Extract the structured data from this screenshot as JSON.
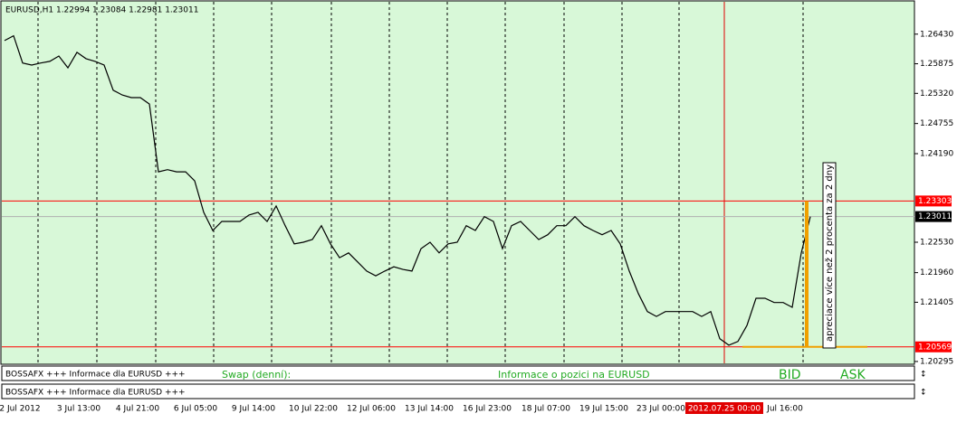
{
  "chart_data": {
    "type": "line",
    "title": "EURUSD,H1  1.22994 1.23084 1.22981 1.23011",
    "color": "#000000",
    "values": [
      1.2631,
      1.264,
      1.2589,
      1.2585,
      1.2589,
      1.2592,
      1.2602,
      1.258,
      1.2609,
      1.2597,
      1.2592,
      1.2585,
      1.2538,
      1.2529,
      1.2524,
      1.2524,
      1.2512,
      1.2385,
      1.2389,
      1.2385,
      1.2385,
      1.2368,
      1.2309,
      1.2275,
      1.2292,
      1.2292,
      1.2292,
      1.2304,
      1.2309,
      1.2292,
      1.2321,
      1.2284,
      1.225,
      1.2253,
      1.2258,
      1.2284,
      1.225,
      1.2224,
      1.2233,
      1.2216,
      1.2199,
      1.219,
      1.2199,
      1.2207,
      1.2202,
      1.2199,
      1.2241,
      1.2253,
      1.2233,
      1.225,
      1.2253,
      1.2284,
      1.2275,
      1.2301,
      1.2292,
      1.2241,
      1.2284,
      1.2292,
      1.2275,
      1.2258,
      1.2267,
      1.2284,
      1.2284,
      1.2301,
      1.2284,
      1.2275,
      1.2267,
      1.2275,
      1.225,
      1.2199,
      1.2157,
      1.2123,
      1.2114,
      1.2123,
      1.2123,
      1.2123,
      1.2123,
      1.2114,
      1.2123,
      1.2072,
      1.206,
      1.2067,
      1.2097,
      1.2148,
      1.2148,
      1.214,
      1.214,
      1.2131,
      1.2233,
      1.2301
    ],
    "xlim": [
      -0.5,
      100
    ],
    "xticks": [
      {
        "value": 1.7,
        "label": "2 Jul 2012"
      },
      {
        "value": 8.2,
        "label": "3 Jul 13:00"
      },
      {
        "value": 14.7,
        "label": "4 Jul 21:00"
      },
      {
        "value": 21.1,
        "label": "6 Jul 05:00"
      },
      {
        "value": 27.5,
        "label": "9 Jul 14:00"
      },
      {
        "value": 34.1,
        "label": "10 Jul 22:00"
      },
      {
        "value": 40.5,
        "label": "12 Jul 06:00"
      },
      {
        "value": 46.9,
        "label": "13 Jul 14:00"
      },
      {
        "value": 53.3,
        "label": "16 Jul 23:00"
      },
      {
        "value": 59.8,
        "label": "18 Jul 07:00"
      },
      {
        "value": 66.2,
        "label": "19 Jul 15:00"
      },
      {
        "value": 72.5,
        "label": "23 Jul 00:00"
      },
      {
        "value": 86.2,
        "label": "Jul 16:00"
      }
    ],
    "cursor": {
      "value": 79.5,
      "label": "2012.07.25 00:00"
    },
    "ylim": [
      1.2026,
      1.2707
    ],
    "yticks": [
      {
        "value": 1.2643,
        "label": "1.26430"
      },
      1.25875,
      {
        "value": 1.2532,
        "label": "1.25320"
      },
      1.24755,
      {
        "value": 1.2419,
        "label": "1.24190"
      },
      {
        "value": 1.2253,
        "label": "1.22530"
      },
      {
        "value": 1.2196,
        "label": "1.21960"
      },
      1.21405,
      1.20295
    ],
    "levels": [
      {
        "value": 1.23303,
        "color": "#ff0000"
      },
      {
        "value": 1.23011,
        "color": "#000000"
      },
      {
        "value": 1.20569,
        "color": "#ff0000"
      }
    ],
    "annotation": "apreciace více než 2 procenta za 2 dny",
    "panels": [
      {
        "title": "BOSSAFX +++ Informace dla EURUSD +++",
        "swap": "Swap (denní):",
        "info": "Informace o pozici na EURUSD",
        "bid": "BID",
        "ask": "ASK"
      },
      {
        "title": "BOSSAFX +++ Informace dla EURUSD +++"
      }
    ]
  }
}
